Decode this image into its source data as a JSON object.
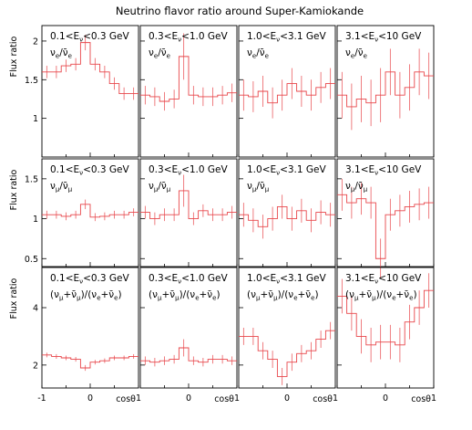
{
  "chart_data": {
    "type": "line",
    "style": "histogram with error bars",
    "title": "Neutrino flavor ratio around Super-Kamiokande",
    "xlabel": "cosθ",
    "ylabel": "Flux ratio",
    "x_ticks": [
      "-1",
      "0",
      "1"
    ],
    "xlim": [
      -1,
      1
    ],
    "bins": [
      -0.9,
      -0.7,
      -0.5,
      -0.3,
      -0.1,
      0.1,
      0.3,
      0.5,
      0.7,
      0.9
    ],
    "line_color": "#e8464a",
    "energy_labels": [
      "0.1<E$_ν$<0.3 GeV",
      "0.3<E$_ν$<1.0 GeV",
      "1.0<E$_ν$<3.1 GeV",
      "3.1<E$_ν$<10 GeV"
    ],
    "rows": [
      {
        "ratio_label": "ν$_e$/ν̄$_e$",
        "ylim": [
          0.5,
          2.2
        ],
        "y_ticks": [
          "1",
          "1.5",
          "2"
        ],
        "panels": [
          {
            "values": [
              1.6,
              1.6,
              1.68,
              1.7,
              1.98,
              1.7,
              1.6,
              1.45,
              1.32,
              1.32
            ],
            "errors": [
              0.08,
              0.08,
              0.08,
              0.08,
              0.1,
              0.08,
              0.08,
              0.08,
              0.08,
              0.08
            ]
          },
          {
            "values": [
              1.3,
              1.28,
              1.22,
              1.25,
              1.8,
              1.3,
              1.28,
              1.28,
              1.3,
              1.33
            ],
            "errors": [
              0.12,
              0.12,
              0.12,
              0.12,
              0.3,
              0.12,
              0.12,
              0.12,
              0.12,
              0.12
            ]
          },
          {
            "values": [
              1.3,
              1.28,
              1.35,
              1.2,
              1.3,
              1.45,
              1.35,
              1.3,
              1.4,
              1.45
            ],
            "errors": [
              0.2,
              0.2,
              0.2,
              0.2,
              0.2,
              0.2,
              0.2,
              0.2,
              0.2,
              0.2
            ]
          },
          {
            "values": [
              1.3,
              1.15,
              1.25,
              1.2,
              1.3,
              1.6,
              1.3,
              1.4,
              1.6,
              1.55
            ],
            "errors": [
              0.3,
              0.3,
              0.3,
              0.3,
              0.35,
              0.3,
              0.3,
              0.3,
              0.3,
              0.3
            ]
          }
        ]
      },
      {
        "ratio_label": "ν$_μ$/ν̄$_μ$",
        "ylim": [
          0.4,
          1.75
        ],
        "y_ticks": [
          "0.5",
          "1",
          "1.5"
        ],
        "panels": [
          {
            "values": [
              1.05,
              1.05,
              1.03,
              1.05,
              1.18,
              1.02,
              1.03,
              1.05,
              1.05,
              1.08
            ],
            "errors": [
              0.05,
              0.05,
              0.05,
              0.05,
              0.06,
              0.05,
              0.05,
              0.05,
              0.05,
              0.05
            ]
          },
          {
            "values": [
              1.08,
              1.0,
              1.05,
              1.05,
              1.35,
              1.0,
              1.1,
              1.05,
              1.05,
              1.08
            ],
            "errors": [
              0.08,
              0.08,
              0.08,
              0.08,
              0.2,
              0.08,
              0.08,
              0.08,
              0.08,
              0.08
            ]
          },
          {
            "values": [
              1.05,
              0.98,
              0.9,
              1.0,
              1.15,
              1.0,
              1.1,
              0.98,
              1.08,
              1.05
            ],
            "errors": [
              0.15,
              0.15,
              0.15,
              0.15,
              0.15,
              0.15,
              0.15,
              0.15,
              0.15,
              0.15
            ]
          },
          {
            "values": [
              1.3,
              1.2,
              1.25,
              1.2,
              0.5,
              1.05,
              1.1,
              1.15,
              1.18,
              1.2
            ],
            "errors": [
              0.2,
              0.2,
              0.2,
              0.2,
              0.25,
              0.2,
              0.2,
              0.2,
              0.2,
              0.2
            ]
          }
        ]
      },
      {
        "ratio_label": "(ν$_μ$+ν̄$_μ$)/(ν$_e$+ν̄$_e$)",
        "ylim": [
          1.2,
          5.4
        ],
        "y_ticks": [
          "2",
          "4"
        ],
        "panels": [
          {
            "values": [
              2.35,
              2.3,
              2.25,
              2.2,
              1.9,
              2.1,
              2.15,
              2.25,
              2.25,
              2.3
            ],
            "errors": [
              0.08,
              0.08,
              0.08,
              0.08,
              0.1,
              0.08,
              0.08,
              0.08,
              0.08,
              0.08
            ]
          },
          {
            "values": [
              2.15,
              2.1,
              2.15,
              2.2,
              2.6,
              2.15,
              2.1,
              2.2,
              2.2,
              2.15
            ],
            "errors": [
              0.15,
              0.15,
              0.15,
              0.15,
              0.3,
              0.15,
              0.15,
              0.15,
              0.15,
              0.15
            ]
          },
          {
            "values": [
              3.0,
              3.0,
              2.5,
              2.2,
              1.6,
              2.1,
              2.4,
              2.5,
              2.9,
              3.2
            ],
            "errors": [
              0.3,
              0.3,
              0.3,
              0.3,
              0.3,
              0.3,
              0.3,
              0.3,
              0.3,
              0.3
            ]
          },
          {
            "values": [
              4.4,
              3.8,
              3.0,
              2.7,
              2.8,
              2.8,
              2.7,
              3.5,
              4.0,
              4.6
            ],
            "errors": [
              0.6,
              0.6,
              0.6,
              0.6,
              0.6,
              0.6,
              0.6,
              0.6,
              0.6,
              0.6
            ]
          }
        ]
      }
    ]
  }
}
